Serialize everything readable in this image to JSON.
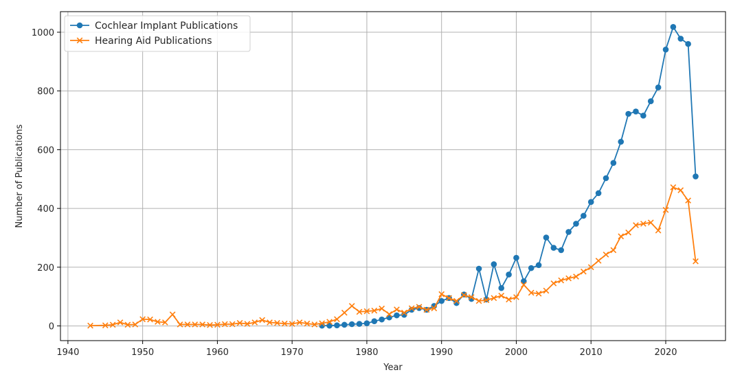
{
  "chart_data": {
    "type": "line",
    "title": "",
    "xlabel": "Year",
    "ylabel": "Number of Publications",
    "xlim": [
      1939,
      2028
    ],
    "ylim": [
      -50,
      1070
    ],
    "x_ticks": [
      1940,
      1950,
      1960,
      1970,
      1980,
      1990,
      2000,
      2010,
      2020
    ],
    "y_ticks": [
      0,
      200,
      400,
      600,
      800,
      1000
    ],
    "grid": true,
    "legend_position": "top-left",
    "series": [
      {
        "name": "Cochlear Implant Publications",
        "color": "#1f77b4",
        "marker": "circle",
        "x": [
          1974,
          1975,
          1976,
          1977,
          1978,
          1979,
          1980,
          1981,
          1982,
          1983,
          1984,
          1985,
          1986,
          1987,
          1988,
          1989,
          1990,
          1991,
          1992,
          1993,
          1994,
          1995,
          1996,
          1997,
          1998,
          1999,
          2000,
          2001,
          2002,
          2003,
          2004,
          2005,
          2006,
          2007,
          2008,
          2009,
          2010,
          2011,
          2012,
          2013,
          2014,
          2015,
          2016,
          2017,
          2018,
          2019,
          2020,
          2021,
          2022,
          2023,
          2024
        ],
        "y": [
          1,
          1,
          2,
          4,
          6,
          7,
          9,
          16,
          22,
          29,
          36,
          38,
          55,
          61,
          55,
          68,
          85,
          95,
          78,
          107,
          92,
          195,
          90,
          210,
          129,
          175,
          232,
          152,
          197,
          207,
          301,
          266,
          258,
          320,
          348,
          375,
          422,
          452,
          503,
          555,
          627,
          722,
          730,
          716,
          765,
          812,
          941,
          1018,
          978,
          960,
          509
        ]
      },
      {
        "name": "Hearing Aid Publications",
        "color": "#ff7f0e",
        "marker": "x",
        "x": [
          1943,
          1945,
          1946,
          1947,
          1948,
          1949,
          1950,
          1951,
          1952,
          1953,
          1954,
          1955,
          1956,
          1957,
          1958,
          1959,
          1960,
          1961,
          1962,
          1963,
          1964,
          1965,
          1966,
          1967,
          1968,
          1969,
          1970,
          1971,
          1972,
          1973,
          1974,
          1975,
          1976,
          1977,
          1978,
          1979,
          1980,
          1981,
          1982,
          1983,
          1984,
          1985,
          1986,
          1987,
          1988,
          1989,
          1990,
          1991,
          1992,
          1993,
          1994,
          1995,
          1996,
          1997,
          1998,
          1999,
          2000,
          2001,
          2002,
          2003,
          2004,
          2005,
          2006,
          2007,
          2008,
          2009,
          2010,
          2011,
          2012,
          2013,
          2014,
          2015,
          2016,
          2017,
          2018,
          2019,
          2020,
          2021,
          2022,
          2023,
          2024
        ],
        "y": [
          1,
          2,
          4,
          12,
          4,
          5,
          23,
          22,
          14,
          12,
          39,
          5,
          5,
          5,
          5,
          3,
          4,
          6,
          6,
          10,
          7,
          12,
          20,
          12,
          10,
          8,
          7,
          12,
          8,
          5,
          9,
          14,
          23,
          45,
          68,
          48,
          50,
          52,
          59,
          40,
          56,
          45,
          60,
          65,
          55,
          60,
          108,
          95,
          85,
          105,
          98,
          85,
          88,
          95,
          103,
          90,
          98,
          140,
          113,
          110,
          120,
          145,
          155,
          162,
          168,
          185,
          200,
          222,
          243,
          258,
          305,
          318,
          343,
          348,
          352,
          325,
          395,
          472,
          462,
          427,
          220
        ]
      }
    ]
  }
}
